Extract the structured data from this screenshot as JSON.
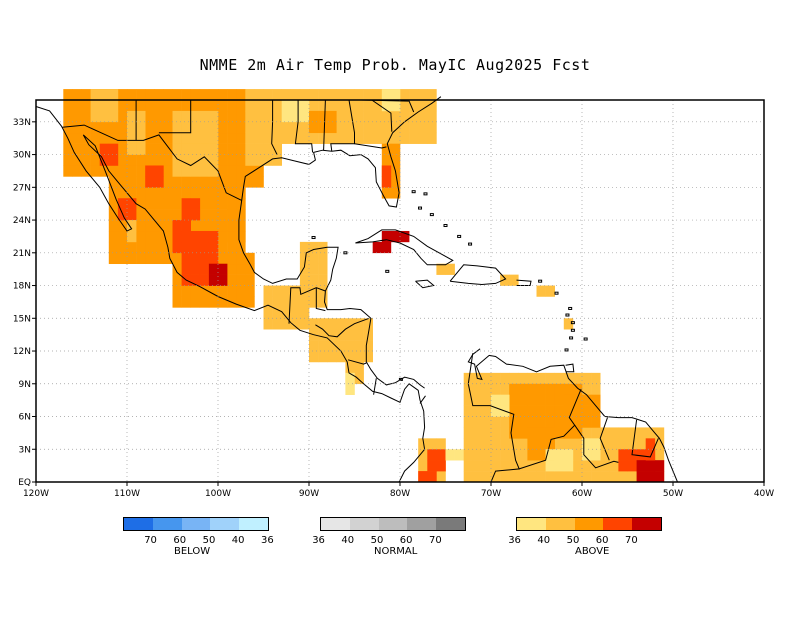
{
  "title": "NMME 2m Air Temp Prob. MayIC  Aug2025 Fcst",
  "map": {
    "lon_range": [
      -120,
      -40
    ],
    "lat_range": [
      0,
      35
    ],
    "lon_ticks": [
      "120W",
      "110W",
      "100W",
      "90W",
      "80W",
      "70W",
      "60W",
      "50W",
      "40W"
    ],
    "lat_ticks": [
      "EQ",
      "3N",
      "6N",
      "9N",
      "12N",
      "15N",
      "18N",
      "21N",
      "24N",
      "27N",
      "30N",
      "33N"
    ],
    "grid": "dotted"
  },
  "colors": {
    "above": [
      "#ffe680",
      "#ffc040",
      "#ff9900",
      "#ff4400",
      "#c40000"
    ],
    "normal": [
      "#e6e6e6",
      "#d2d2d2",
      "#bdbdbd",
      "#a0a0a0",
      "#7a7a7a"
    ],
    "below": [
      "#1e6ee6",
      "#4696ee",
      "#78b4f5",
      "#a0d2fa",
      "#c0f0ff"
    ]
  },
  "legend": {
    "below": {
      "label": "BELOW",
      "ticks": [
        "70",
        "60",
        "50",
        "40",
        "36"
      ]
    },
    "normal": {
      "label": "NORMAL",
      "ticks": [
        "36",
        "40",
        "50",
        "60",
        "70"
      ]
    },
    "above": {
      "label": "ABOVE",
      "ticks": [
        "36",
        "40",
        "50",
        "60",
        "70"
      ]
    }
  }
}
